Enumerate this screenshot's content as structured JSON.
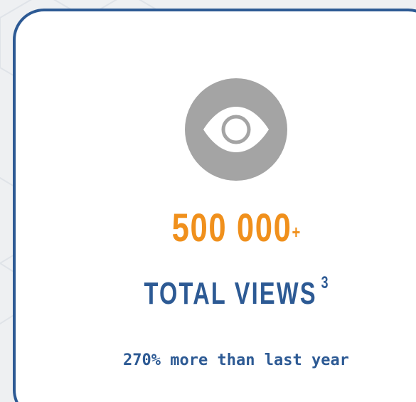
{
  "stat": {
    "icon": "eye-icon",
    "value": "500 000",
    "value_suffix": "+",
    "label": "TOTAL VIEWS",
    "footnote_ref": "3",
    "note": "270% more than last year"
  },
  "colors": {
    "background": "#eef0f2",
    "card_border": "#2d5a94",
    "card_fill": "#ffffff",
    "value": "#f0901c",
    "label": "#2d5a94",
    "icon_circle": "#a4a4a4",
    "icon_glyph": "#ffffff"
  }
}
